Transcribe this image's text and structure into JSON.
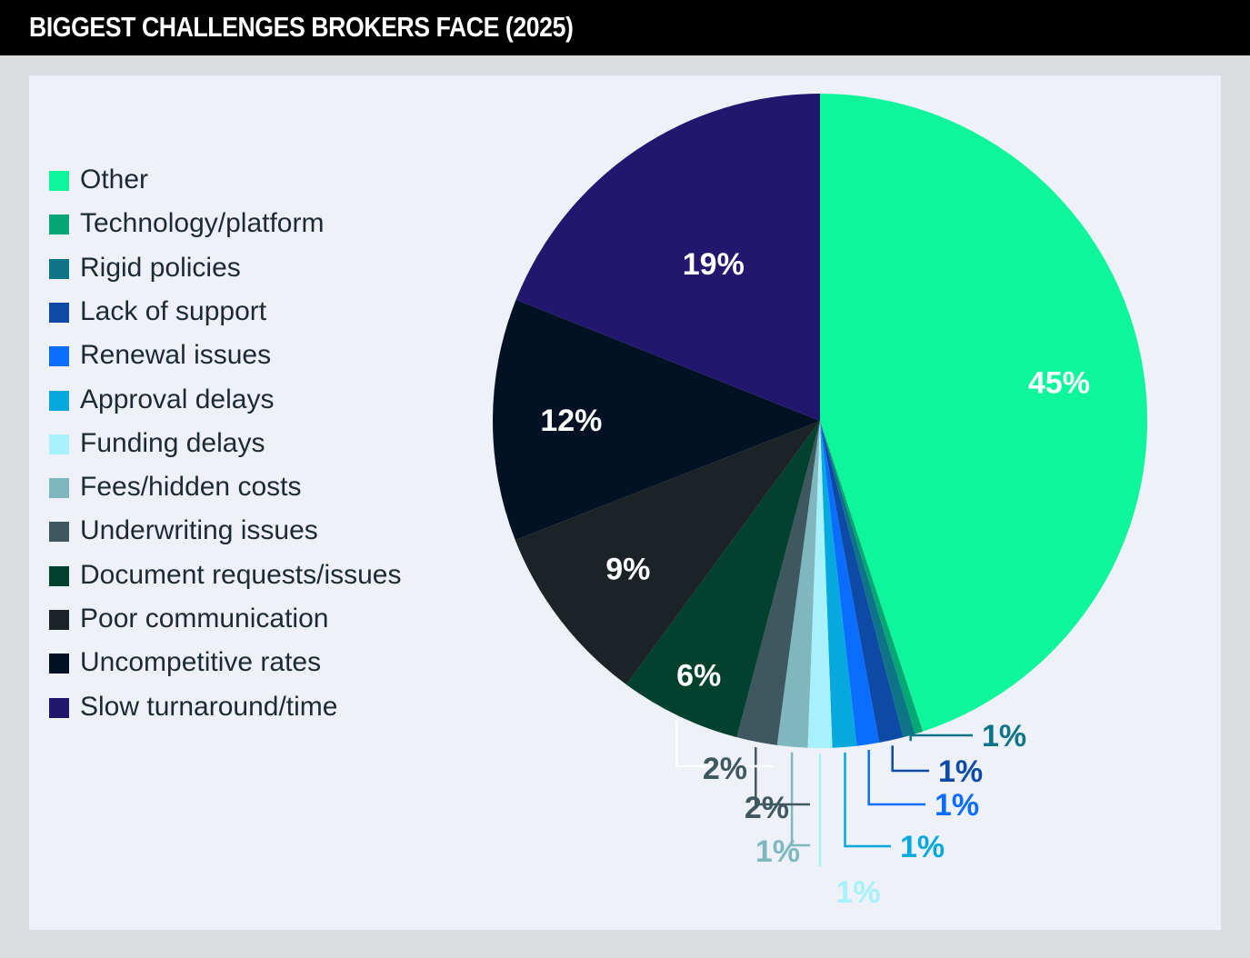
{
  "header": {
    "title": "BIGGEST CHALLENGES BROKERS FACE (2025)"
  },
  "chart_data": {
    "type": "pie",
    "title": "BIGGEST CHALLENGES BROKERS FACE (2025)",
    "legend_position": "left",
    "slices": [
      {
        "label": "Other",
        "value": 45,
        "display": "45%",
        "color": "#0ff59b",
        "label_color": "#ffffff"
      },
      {
        "label": "Technology/platform",
        "value": 0.4,
        "display": "",
        "color": "#05a874",
        "label_color": "#05a874"
      },
      {
        "label": "Rigid policies",
        "value": 0.6,
        "display": "1%",
        "color": "#0e7487",
        "label_color": "#0e7487"
      },
      {
        "label": "Lack of support",
        "value": 1.2,
        "display": "1%",
        "color": "#0c4aa6",
        "label_color": "#0c4aa6"
      },
      {
        "label": "Renewal issues",
        "value": 1.1,
        "display": "1%",
        "color": "#0a6dff",
        "label_color": "#0a6dff"
      },
      {
        "label": "Approval delays",
        "value": 1.2,
        "display": "1%",
        "color": "#05a9de",
        "label_color": "#05a9de"
      },
      {
        "label": "Funding delays",
        "value": 1.2,
        "display": "1%",
        "color": "#a6f1fc",
        "label_color": "#a6f1fc"
      },
      {
        "label": "Fees/hidden costs",
        "value": 1.5,
        "display": "1%",
        "color": "#7fb7bf",
        "label_color": "#7fb7bf"
      },
      {
        "label": "Underwriting issues",
        "value": 2,
        "display": "2%",
        "color": "#3f5860",
        "label_color": "#3f5860"
      },
      {
        "label": "Document requests/issues",
        "value": 6,
        "display": "6%",
        "color": "#02412e",
        "label_color": "#ffffff"
      },
      {
        "label": "Poor communication",
        "value": 9,
        "display": "9%",
        "color": "#1b2326",
        "label_color": "#ffffff"
      },
      {
        "label": "Uncompetitive rates",
        "value": 12,
        "display": "12%",
        "color": "#021224",
        "label_color": "#ffffff"
      },
      {
        "label": "Slow turnaround/time",
        "value": 19,
        "display": "19%",
        "color": "#22166e",
        "label_color": "#ffffff"
      }
    ]
  }
}
